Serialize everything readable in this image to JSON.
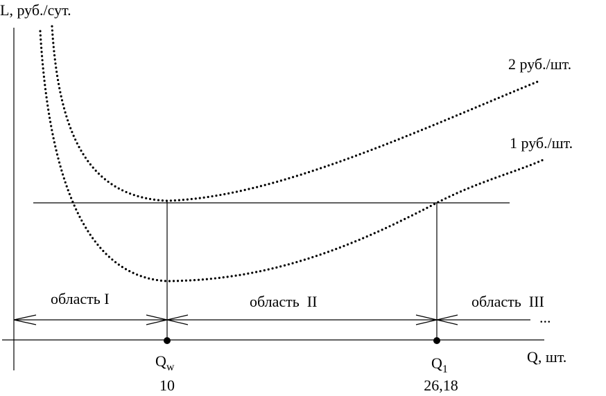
{
  "axes": {
    "y_label": "L, руб./сут.",
    "x_label": "Q, шт."
  },
  "curves": [
    {
      "label": "2 руб./шт."
    },
    {
      "label": "1 руб./шт."
    }
  ],
  "regions": [
    {
      "label": "область I"
    },
    {
      "label": "область  II"
    },
    {
      "label": "область  III"
    }
  ],
  "continuation": "...",
  "points": [
    {
      "label": "Q",
      "subscript": "w",
      "value": "10"
    },
    {
      "label": "Q",
      "subscript": "1",
      "value": "26,18"
    }
  ]
}
